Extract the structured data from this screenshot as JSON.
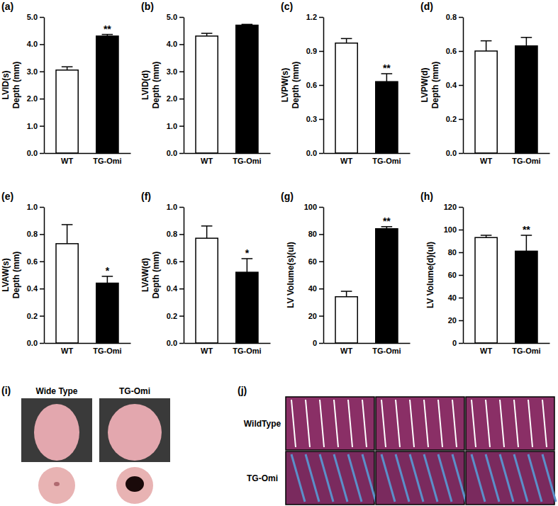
{
  "chart_data": [
    {
      "type": "bar",
      "title": "(a)",
      "ylabel": [
        "LVID(s)",
        "Depth (mm)"
      ],
      "categories": [
        "WT",
        "TG-Omi"
      ],
      "values": [
        3.05,
        4.3
      ],
      "errors": [
        0.12,
        0.06
      ],
      "significance": [
        null,
        "**"
      ],
      "colors": [
        "#ffffff",
        "#000000"
      ],
      "ylim": [
        0,
        5
      ],
      "yticks": [
        {
          "value": 0,
          "label": "0.0"
        },
        {
          "value": 1,
          "label": "1.0"
        },
        {
          "value": 2,
          "label": "2.0"
        },
        {
          "value": 3,
          "label": "3.0"
        },
        {
          "value": 4,
          "label": "4.0"
        },
        {
          "value": 5,
          "label": "5.0"
        }
      ]
    },
    {
      "type": "bar",
      "title": "(b)",
      "ylabel": [
        "LVID(d)",
        "Depth (mm)"
      ],
      "categories": [
        "WT",
        "TG-Omi"
      ],
      "values": [
        4.3,
        4.7
      ],
      "errors": [
        0.1,
        0.03
      ],
      "significance": [
        null,
        null
      ],
      "colors": [
        "#ffffff",
        "#000000"
      ],
      "ylim": [
        0,
        5
      ],
      "yticks": [
        {
          "value": 0,
          "label": "0.0"
        },
        {
          "value": 1,
          "label": "1.0"
        },
        {
          "value": 2,
          "label": "2.0"
        },
        {
          "value": 3,
          "label": "3.0"
        },
        {
          "value": 4,
          "label": "4.0"
        },
        {
          "value": 5,
          "label": "5.0"
        }
      ]
    },
    {
      "type": "bar",
      "title": "(c)",
      "ylabel": [
        "LVPW(s)",
        "Depth (mm)"
      ],
      "categories": [
        "WT",
        "TG-Omi"
      ],
      "values": [
        0.97,
        0.63
      ],
      "errors": [
        0.04,
        0.07
      ],
      "significance": [
        null,
        "**"
      ],
      "colors": [
        "#ffffff",
        "#000000"
      ],
      "ylim": [
        0,
        1.2
      ],
      "yticks": [
        {
          "value": 0,
          "label": "0.0"
        },
        0.3,
        0.6,
        0.9,
        1.2
      ]
    },
    {
      "type": "bar",
      "title": "(d)",
      "ylabel": [
        "LVPW(d)",
        "Depth (mm)"
      ],
      "categories": [
        "WT",
        "TG-Omi"
      ],
      "values": [
        0.6,
        0.63
      ],
      "errors": [
        0.06,
        0.05
      ],
      "significance": [
        null,
        null
      ],
      "colors": [
        "#ffffff",
        "#000000"
      ],
      "ylim": [
        0,
        0.8
      ],
      "yticks": [
        {
          "value": 0,
          "label": "0.0"
        },
        0.2,
        0.4,
        0.6,
        0.8
      ]
    },
    {
      "type": "bar",
      "title": "(e)",
      "ylabel": [
        "LVAW(s)",
        "Depth (mm)"
      ],
      "categories": [
        "WT",
        "TG-Omi"
      ],
      "values": [
        0.73,
        0.44
      ],
      "errors": [
        0.14,
        0.05
      ],
      "significance": [
        null,
        "*"
      ],
      "colors": [
        "#ffffff",
        "#000000"
      ],
      "ylim": [
        0,
        1
      ],
      "yticks": [
        {
          "value": 0,
          "label": "0.0"
        },
        0.2,
        0.4,
        0.6,
        0.8,
        {
          "value": 1,
          "label": "1.0"
        }
      ]
    },
    {
      "type": "bar",
      "title": "(f)",
      "ylabel": [
        "LVAW(d)",
        "Depth (mm)"
      ],
      "categories": [
        "WT",
        "TG-Omi"
      ],
      "values": [
        0.77,
        0.52
      ],
      "errors": [
        0.09,
        0.1
      ],
      "significance": [
        null,
        "*"
      ],
      "colors": [
        "#ffffff",
        "#000000"
      ],
      "ylim": [
        0,
        1
      ],
      "yticks": [
        {
          "value": 0,
          "label": "0.0"
        },
        0.2,
        0.4,
        0.6,
        0.8,
        {
          "value": 1,
          "label": "1.0"
        }
      ]
    },
    {
      "type": "bar",
      "title": "(g)",
      "ylabel": [
        "LV Volume(s)(ul)"
      ],
      "categories": [
        "WT",
        "TG-Omi"
      ],
      "values": [
        34,
        84
      ],
      "errors": [
        4,
        1.5
      ],
      "significance": [
        null,
        "**"
      ],
      "colors": [
        "#ffffff",
        "#000000"
      ],
      "ylim": [
        0,
        100
      ],
      "yticks": [
        0,
        20,
        40,
        60,
        80,
        100
      ]
    },
    {
      "type": "bar",
      "title": "(h)",
      "ylabel": [
        "LV Volume(d)(ul)"
      ],
      "categories": [
        "WT",
        "TG-Omi"
      ],
      "values": [
        93,
        81
      ],
      "errors": [
        2,
        14
      ],
      "significance": [
        null,
        "**"
      ],
      "colors": [
        "#ffffff",
        "#000000"
      ],
      "ylim": [
        0,
        120
      ],
      "yticks": [
        0,
        20,
        40,
        60,
        80,
        100,
        120
      ]
    }
  ],
  "image_panels": [
    {
      "title": "(i)",
      "labels": [
        "Wide Type",
        "TG-Omi"
      ]
    },
    {
      "title": "(j)",
      "labels": [
        "WildType",
        "TG-Omi"
      ]
    }
  ]
}
